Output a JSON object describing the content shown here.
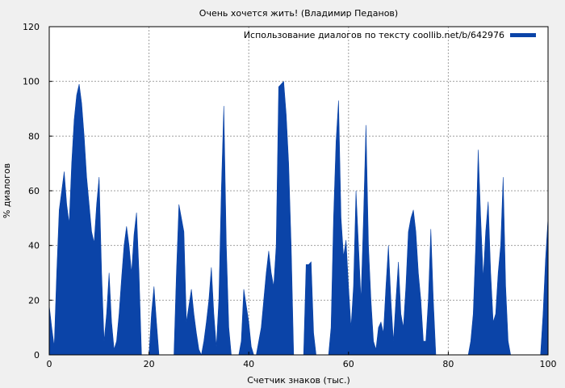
{
  "chart_data": {
    "type": "area",
    "title": "Очень хочется жить! (Владимир Педанов)",
    "xlabel": "Счетчик знаков (тыс.)",
    "ylabel": "% диалогов",
    "xlim": [
      0,
      100
    ],
    "ylim": [
      0,
      120
    ],
    "x_ticks": [
      0,
      20,
      40,
      60,
      80,
      100
    ],
    "y_ticks": [
      0,
      20,
      40,
      60,
      80,
      100,
      120
    ],
    "grid": true,
    "legend_position": "top-right",
    "colors": {
      "series": "#0b44a8",
      "background": "#f0f0f0",
      "plot_background": "#ffffff",
      "grid": "#a0a0a0"
    },
    "series": [
      {
        "name": "Использование диалогов по тексту coollib.net/b/642976",
        "x": [
          0,
          0.5,
          1,
          1.5,
          2,
          2.5,
          3,
          3.5,
          4,
          4.5,
          5,
          5.5,
          6,
          6.5,
          7,
          7.5,
          8,
          8.5,
          9,
          9.5,
          10,
          10.5,
          11,
          11.5,
          12,
          12.5,
          13,
          13.5,
          14,
          14.5,
          15,
          15.5,
          16,
          16.5,
          17,
          17.5,
          18,
          18.5,
          19,
          19.5,
          20,
          20.5,
          21,
          21.5,
          22,
          22.5,
          23,
          23.5,
          24,
          24.5,
          25,
          25.5,
          26,
          26.5,
          27,
          27.5,
          28,
          28.5,
          29,
          29.5,
          30,
          30.5,
          31,
          31.5,
          32,
          32.5,
          33,
          33.5,
          34,
          34.5,
          35,
          35.5,
          36,
          36.5,
          37,
          37.5,
          38,
          38.5,
          39,
          39.5,
          40,
          40.5,
          41,
          41.5,
          42,
          42.5,
          43,
          43.5,
          44,
          44.5,
          45,
          45.5,
          46,
          46.5,
          47,
          47.5,
          48,
          48.5,
          49,
          49.5,
          50,
          50.5,
          51,
          51.5,
          52,
          52.5,
          53,
          53.5,
          54,
          54.5,
          55,
          55.5,
          56,
          56.5,
          57,
          57.5,
          58,
          58.5,
          59,
          59.5,
          60,
          60.5,
          61,
          61.5,
          62,
          62.5,
          63,
          63.5,
          64,
          64.5,
          65,
          65.5,
          66,
          66.5,
          67,
          67.5,
          68,
          68.5,
          69,
          69.5,
          70,
          70.5,
          71,
          71.5,
          72,
          72.5,
          73,
          73.5,
          74,
          74.5,
          75,
          75.5,
          76,
          76.5,
          77,
          77.5,
          78,
          78.5,
          79,
          79.5,
          80,
          80.5,
          81,
          81.5,
          82,
          82.5,
          83,
          83.5,
          84,
          84.5,
          85,
          85.5,
          86,
          86.5,
          87,
          87.5,
          88,
          88.5,
          89,
          89.5,
          90,
          90.5,
          91,
          91.5,
          92,
          92.5,
          93,
          93.5,
          94,
          94.5,
          95,
          95.5,
          96,
          96.5,
          97,
          97.5,
          98,
          98.5,
          99,
          99.5,
          100
        ],
        "values": [
          18,
          10,
          3,
          30,
          53,
          60,
          67,
          55,
          48,
          70,
          86,
          95,
          99,
          92,
          80,
          65,
          55,
          45,
          41,
          55,
          65,
          30,
          5,
          15,
          30,
          12,
          2,
          5,
          15,
          28,
          40,
          47,
          40,
          30,
          44,
          52,
          30,
          0,
          0,
          0,
          0,
          15,
          25,
          12,
          0,
          0,
          0,
          0,
          0,
          0,
          0,
          30,
          55,
          50,
          45,
          12,
          18,
          24,
          15,
          8,
          2,
          0,
          5,
          12,
          20,
          32,
          15,
          3,
          20,
          60,
          91,
          40,
          10,
          0,
          0,
          0,
          0,
          5,
          24,
          18,
          12,
          3,
          0,
          0,
          5,
          10,
          20,
          30,
          38,
          30,
          25,
          40,
          98,
          99,
          100,
          88,
          70,
          40,
          0,
          0,
          0,
          0,
          0,
          33,
          33,
          34,
          8,
          0,
          0,
          0,
          0,
          0,
          0,
          10,
          50,
          78,
          93,
          50,
          36,
          42,
          25,
          10,
          25,
          60,
          40,
          20,
          50,
          84,
          40,
          20,
          5,
          2,
          10,
          12,
          8,
          25,
          40,
          20,
          5,
          20,
          34,
          15,
          10,
          25,
          45,
          50,
          53,
          45,
          30,
          20,
          5,
          5,
          20,
          46,
          20,
          0,
          0,
          0,
          0,
          0,
          0,
          0,
          0,
          0,
          0,
          0,
          0,
          0,
          0,
          5,
          15,
          40,
          75,
          50,
          28,
          45,
          56,
          30,
          12,
          15,
          30,
          40,
          65,
          25,
          5,
          0,
          0,
          0,
          0,
          0,
          0,
          0,
          0,
          0,
          0,
          0,
          0,
          0,
          15,
          35,
          50
        ]
      }
    ]
  }
}
